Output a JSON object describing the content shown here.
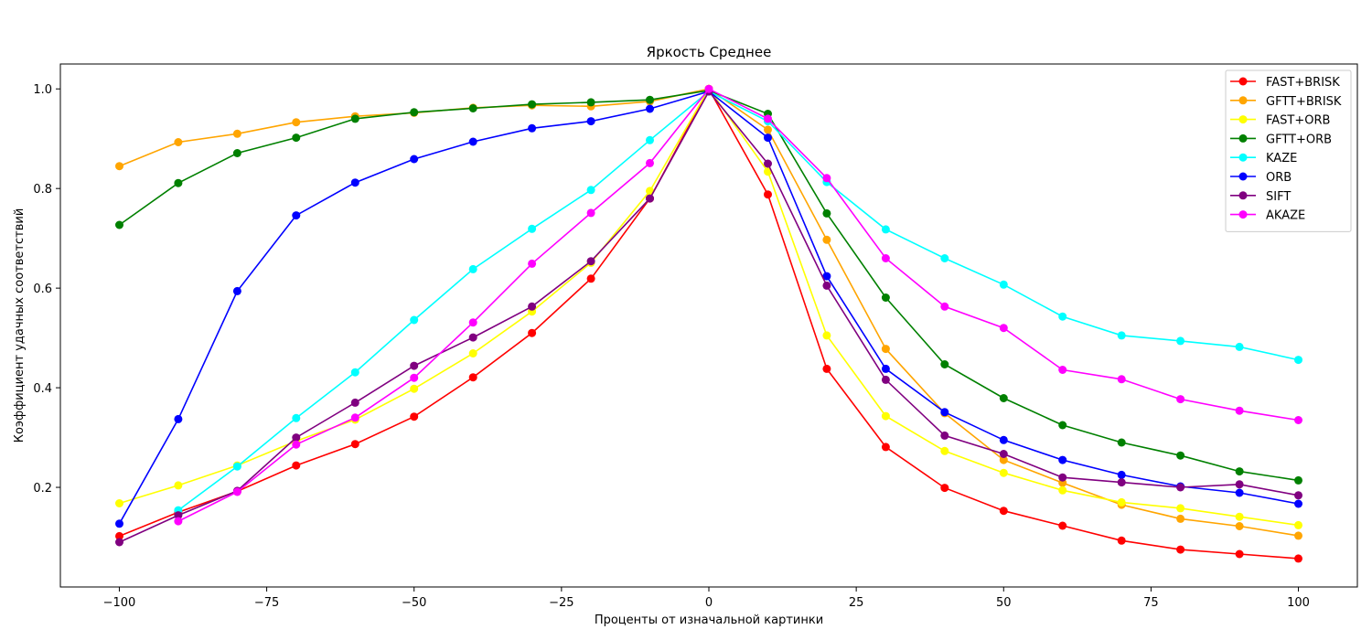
{
  "chart_data": {
    "type": "line",
    "title": "Яркость Среднее",
    "xlabel": "Проценты от изначальной картинки",
    "ylabel": "Коэффициент удачных соответствий",
    "xlim": [
      -110,
      110
    ],
    "ylim": [
      0.0,
      1.05
    ],
    "x_ticks": [
      -100,
      -75,
      -50,
      -25,
      0,
      25,
      50,
      75,
      100
    ],
    "x_tick_labels": [
      "−100",
      "−75",
      "−50",
      "−25",
      "0",
      "25",
      "50",
      "75",
      "100"
    ],
    "y_ticks": [
      0.2,
      0.4,
      0.6,
      0.8,
      1.0
    ],
    "y_tick_labels": [
      "0.2",
      "0.4",
      "0.6",
      "0.8",
      "1.0"
    ],
    "grid": false,
    "legend_position": "top-right",
    "x": [
      -100,
      -90,
      -80,
      -70,
      -60,
      -50,
      -40,
      -30,
      -20,
      -10,
      0,
      10,
      20,
      30,
      40,
      50,
      60,
      70,
      80,
      90,
      100
    ],
    "series": [
      {
        "name": "FAST+BRISK",
        "color": "#ff0000",
        "values": [
          0.102,
          0.15,
          0.192,
          0.244,
          0.287,
          0.342,
          0.421,
          0.51,
          0.619,
          0.78,
          1.0,
          0.788,
          0.438,
          0.281,
          0.199,
          0.153,
          0.123,
          0.093,
          0.075,
          0.066,
          0.057
        ]
      },
      {
        "name": "GFTT+BRISK",
        "color": "#ffa500",
        "values": [
          0.845,
          0.893,
          0.91,
          0.933,
          0.945,
          0.952,
          0.962,
          0.967,
          0.965,
          0.975,
          1.0,
          0.918,
          0.697,
          0.478,
          0.349,
          0.255,
          0.209,
          0.165,
          0.137,
          0.122,
          0.103
        ]
      },
      {
        "name": "FAST+ORB",
        "color": "#ffff00",
        "values": [
          0.168,
          0.204,
          0.244,
          0.293,
          0.336,
          0.398,
          0.469,
          0.553,
          0.651,
          0.795,
          1.0,
          0.834,
          0.505,
          0.343,
          0.273,
          0.229,
          0.194,
          0.17,
          0.158,
          0.141,
          0.124
        ]
      },
      {
        "name": "GFTT+ORB",
        "color": "#008000",
        "values": [
          0.727,
          0.811,
          0.871,
          0.902,
          0.94,
          0.953,
          0.961,
          0.969,
          0.973,
          0.978,
          0.997,
          0.95,
          0.75,
          0.581,
          0.447,
          0.379,
          0.325,
          0.29,
          0.264,
          0.232,
          0.214
        ]
      },
      {
        "name": "KAZE",
        "color": "#00ffff",
        "values": [
          null,
          0.154,
          0.242,
          0.339,
          0.431,
          0.536,
          0.638,
          0.719,
          0.797,
          0.897,
          0.995,
          0.935,
          0.813,
          0.718,
          0.66,
          0.607,
          0.543,
          0.505,
          0.494,
          0.482,
          0.456
        ]
      },
      {
        "name": "ORB",
        "color": "#0000ff",
        "values": [
          0.127,
          0.337,
          0.594,
          0.746,
          0.812,
          0.859,
          0.894,
          0.921,
          0.935,
          0.96,
          0.995,
          0.902,
          0.624,
          0.438,
          0.351,
          0.295,
          0.255,
          0.225,
          0.202,
          0.189,
          0.167
        ]
      },
      {
        "name": "SIFT",
        "color": "#800080",
        "values": [
          0.09,
          0.144,
          0.193,
          0.3,
          0.37,
          0.444,
          0.501,
          0.563,
          0.654,
          0.78,
          0.995,
          0.85,
          0.605,
          0.416,
          0.304,
          0.267,
          0.22,
          0.21,
          0.2,
          0.206,
          0.184
        ]
      },
      {
        "name": "AKAZE",
        "color": "#ff00ff",
        "values": [
          null,
          0.132,
          0.191,
          0.286,
          0.34,
          0.42,
          0.531,
          0.649,
          0.751,
          0.851,
          1.0,
          0.94,
          0.821,
          0.66,
          0.563,
          0.52,
          0.436,
          0.417,
          0.377,
          0.354,
          0.335
        ]
      }
    ]
  }
}
